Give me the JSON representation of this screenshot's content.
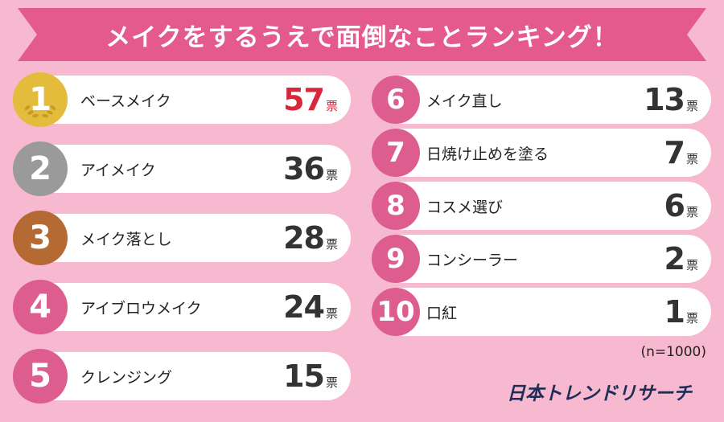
{
  "title": "メイクをするうえで面倒なことランキング！",
  "unit": "票",
  "note": "(n=1000)",
  "source": "日本トレンドリサーチ",
  "colors": {
    "background": "#f6b9cf",
    "banner": "#e45a8d",
    "rank_badge": "#dd5d8f",
    "gold": "#e4bc3b",
    "silver": "#9a9a9a",
    "bronze": "#b46a32",
    "top_value": "#d8263a"
  },
  "chart_data": {
    "type": "table",
    "title": "メイクをするうえで面倒なことランキング！",
    "columns": [
      "rank",
      "item",
      "votes"
    ],
    "rows": [
      {
        "rank": "1",
        "item": "ベースメイク",
        "votes": "57"
      },
      {
        "rank": "2",
        "item": "アイメイク",
        "votes": "36"
      },
      {
        "rank": "3",
        "item": "メイク落とし",
        "votes": "28"
      },
      {
        "rank": "4",
        "item": "アイブロウメイク",
        "votes": "24"
      },
      {
        "rank": "5",
        "item": "クレンジング",
        "votes": "15"
      },
      {
        "rank": "6",
        "item": "メイク直し",
        "votes": "13"
      },
      {
        "rank": "7",
        "item": "日焼け止めを塗る",
        "votes": "7"
      },
      {
        "rank": "8",
        "item": "コスメ選び",
        "votes": "6"
      },
      {
        "rank": "9",
        "item": "コンシーラー",
        "votes": "2"
      },
      {
        "rank": "10",
        "item": "口紅",
        "votes": "1"
      }
    ]
  }
}
